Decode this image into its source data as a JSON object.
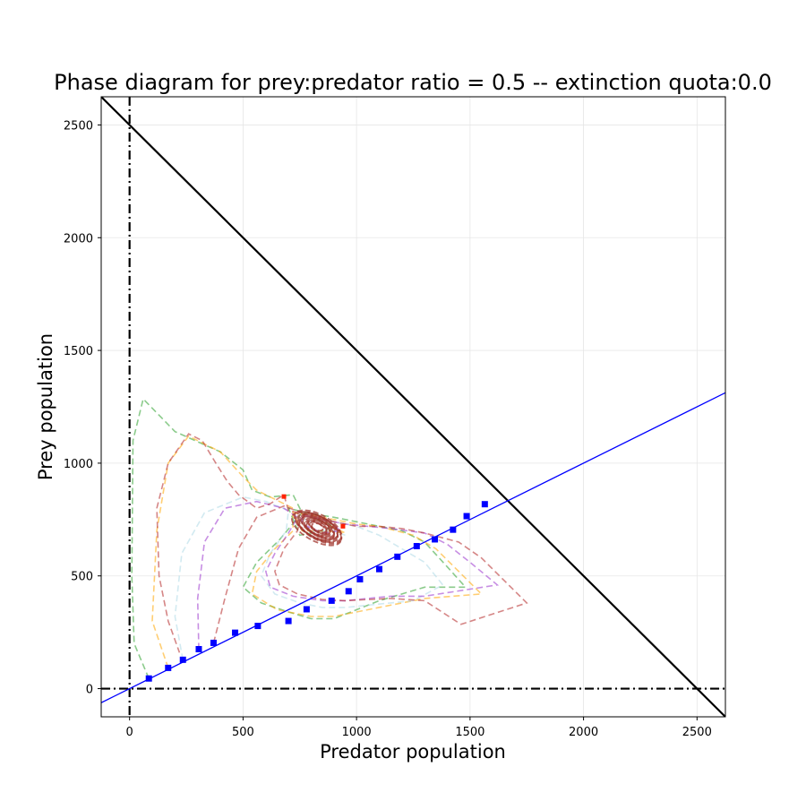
{
  "chart_data": {
    "type": "line",
    "title": "Phase diagram for prey:predator ratio = 0.5 -- extinction quota:0.0",
    "xlabel": "Predator population",
    "ylabel": "Prey population",
    "xlim": [
      -125,
      2625
    ],
    "ylim": [
      -125,
      2625
    ],
    "xticks": [
      0,
      500,
      1000,
      1500,
      2000,
      2500
    ],
    "yticks": [
      0,
      500,
      1000,
      1500,
      2000,
      2500
    ],
    "grid": true,
    "reference_lines": [
      {
        "name": "x = 0",
        "style": "dash-dot",
        "color": "#000000"
      },
      {
        "name": "y = 0",
        "style": "dash-dot",
        "color": "#000000"
      },
      {
        "name": "x + y = 2500",
        "style": "solid",
        "color": "#000000"
      },
      {
        "name": "y = 0.5 x",
        "style": "solid",
        "color": "#0000ff"
      }
    ],
    "markers": {
      "color": "#0000ff",
      "points": [
        [
          85,
          45
        ],
        [
          170,
          92
        ],
        [
          235,
          128
        ],
        [
          305,
          175
        ],
        [
          370,
          203
        ],
        [
          465,
          248
        ],
        [
          565,
          278
        ],
        [
          700,
          300
        ],
        [
          780,
          352
        ],
        [
          890,
          390
        ],
        [
          965,
          432
        ],
        [
          1015,
          485
        ],
        [
          1100,
          530
        ],
        [
          1180,
          585
        ],
        [
          1265,
          632
        ],
        [
          1345,
          662
        ],
        [
          1425,
          705
        ],
        [
          1485,
          765
        ],
        [
          1565,
          818
        ]
      ]
    },
    "series": [
      {
        "color": "#2ca02c",
        "values": [
          [
            85,
            45
          ],
          [
            20,
            200
          ],
          [
            10,
            500
          ],
          [
            15,
            1100
          ],
          [
            60,
            1285
          ],
          [
            200,
            1140
          ],
          [
            400,
            1050
          ],
          [
            500,
            970
          ],
          [
            540,
            880
          ],
          [
            620,
            850
          ],
          [
            720,
            860
          ],
          [
            760,
            780
          ],
          [
            660,
            660
          ],
          [
            560,
            560
          ],
          [
            500,
            450
          ],
          [
            580,
            380
          ],
          [
            700,
            340
          ],
          [
            800,
            310
          ],
          [
            900,
            310
          ],
          [
            1000,
            350
          ],
          [
            1100,
            390
          ],
          [
            1200,
            420
          ],
          [
            1300,
            450
          ],
          [
            1480,
            450
          ],
          [
            1400,
            540
          ],
          [
            1300,
            650
          ],
          [
            1200,
            700
          ],
          [
            1100,
            720
          ],
          [
            1000,
            740
          ],
          [
            900,
            760
          ],
          [
            780,
            780
          ],
          [
            700,
            800
          ],
          [
            750,
            680
          ],
          [
            850,
            700
          ],
          [
            900,
            720
          ],
          [
            800,
            760
          ]
        ]
      },
      {
        "color": "#ffa500",
        "values": [
          [
            170,
            92
          ],
          [
            100,
            300
          ],
          [
            120,
            700
          ],
          [
            170,
            1000
          ],
          [
            260,
            1120
          ],
          [
            400,
            1050
          ],
          [
            500,
            940
          ],
          [
            560,
            880
          ],
          [
            640,
            840
          ],
          [
            720,
            800
          ],
          [
            720,
            700
          ],
          [
            640,
            620
          ],
          [
            560,
            520
          ],
          [
            540,
            420
          ],
          [
            650,
            350
          ],
          [
            800,
            320
          ],
          [
            900,
            320
          ],
          [
            1000,
            340
          ],
          [
            1150,
            370
          ],
          [
            1300,
            400
          ],
          [
            1550,
            420
          ],
          [
            1450,
            520
          ],
          [
            1350,
            620
          ],
          [
            1250,
            680
          ],
          [
            1100,
            720
          ],
          [
            1000,
            730
          ],
          [
            900,
            750
          ],
          [
            800,
            770
          ],
          [
            720,
            780
          ],
          [
            760,
            700
          ],
          [
            860,
            700
          ],
          [
            950,
            690
          ],
          [
            850,
            740
          ]
        ]
      },
      {
        "color": "#add8e6",
        "values": [
          [
            235,
            128
          ],
          [
            200,
            320
          ],
          [
            230,
            600
          ],
          [
            330,
            780
          ],
          [
            500,
            850
          ],
          [
            600,
            830
          ],
          [
            700,
            790
          ],
          [
            690,
            700
          ],
          [
            620,
            600
          ],
          [
            580,
            500
          ],
          [
            640,
            420
          ],
          [
            750,
            380
          ],
          [
            850,
            360
          ],
          [
            950,
            360
          ],
          [
            1050,
            370
          ],
          [
            1150,
            380
          ],
          [
            1250,
            390
          ],
          [
            1380,
            460
          ],
          [
            1300,
            560
          ],
          [
            1200,
            620
          ],
          [
            1100,
            680
          ],
          [
            1000,
            720
          ],
          [
            900,
            740
          ],
          [
            800,
            740
          ],
          [
            740,
            760
          ],
          [
            800,
            700
          ],
          [
            900,
            700
          ],
          [
            950,
            680
          ]
        ]
      },
      {
        "color": "#9932cc",
        "values": [
          [
            305,
            175
          ],
          [
            300,
            400
          ],
          [
            330,
            650
          ],
          [
            420,
            800
          ],
          [
            560,
            830
          ],
          [
            680,
            800
          ],
          [
            740,
            760
          ],
          [
            700,
            690
          ],
          [
            640,
            600
          ],
          [
            600,
            520
          ],
          [
            620,
            450
          ],
          [
            720,
            410
          ],
          [
            850,
            390
          ],
          [
            950,
            390
          ],
          [
            1050,
            400
          ],
          [
            1150,
            410
          ],
          [
            1300,
            410
          ],
          [
            1620,
            460
          ],
          [
            1500,
            560
          ],
          [
            1400,
            640
          ],
          [
            1300,
            690
          ],
          [
            1150,
            710
          ],
          [
            1050,
            720
          ],
          [
            950,
            730
          ],
          [
            850,
            750
          ],
          [
            760,
            770
          ],
          [
            760,
            730
          ],
          [
            850,
            690
          ],
          [
            930,
            700
          ],
          [
            880,
            740
          ]
        ]
      },
      {
        "color": "#b22222",
        "values": [
          [
            370,
            203
          ],
          [
            420,
            400
          ],
          [
            480,
            620
          ],
          [
            560,
            760
          ],
          [
            680,
            810
          ],
          [
            760,
            780
          ],
          [
            740,
            700
          ],
          [
            680,
            620
          ],
          [
            640,
            520
          ],
          [
            660,
            460
          ],
          [
            740,
            420
          ],
          [
            850,
            395
          ],
          [
            950,
            390
          ],
          [
            1050,
            395
          ],
          [
            1150,
            400
          ],
          [
            1300,
            390
          ],
          [
            1460,
            285
          ],
          [
            1750,
            380
          ],
          [
            1650,
            480
          ],
          [
            1550,
            580
          ],
          [
            1450,
            650
          ],
          [
            1300,
            690
          ],
          [
            1200,
            710
          ],
          [
            1100,
            720
          ],
          [
            1000,
            720
          ],
          [
            900,
            740
          ],
          [
            820,
            760
          ],
          [
            750,
            780
          ],
          [
            700,
            790
          ],
          [
            680,
            860
          ],
          [
            620,
            820
          ],
          [
            560,
            800
          ],
          [
            480,
            860
          ],
          [
            430,
            920
          ],
          [
            380,
            1000
          ],
          [
            320,
            1100
          ],
          [
            260,
            1130
          ],
          [
            170,
            1000
          ],
          [
            120,
            800
          ],
          [
            130,
            500
          ],
          [
            170,
            300
          ],
          [
            220,
            160
          ]
        ]
      }
    ],
    "limit_cycle": {
      "center": [
        830,
        715
      ],
      "color": "#a0342c"
    },
    "endpoint_markers": {
      "color": "#ff2200",
      "points": [
        [
          680,
          852
        ],
        [
          940,
          720
        ]
      ]
    }
  }
}
